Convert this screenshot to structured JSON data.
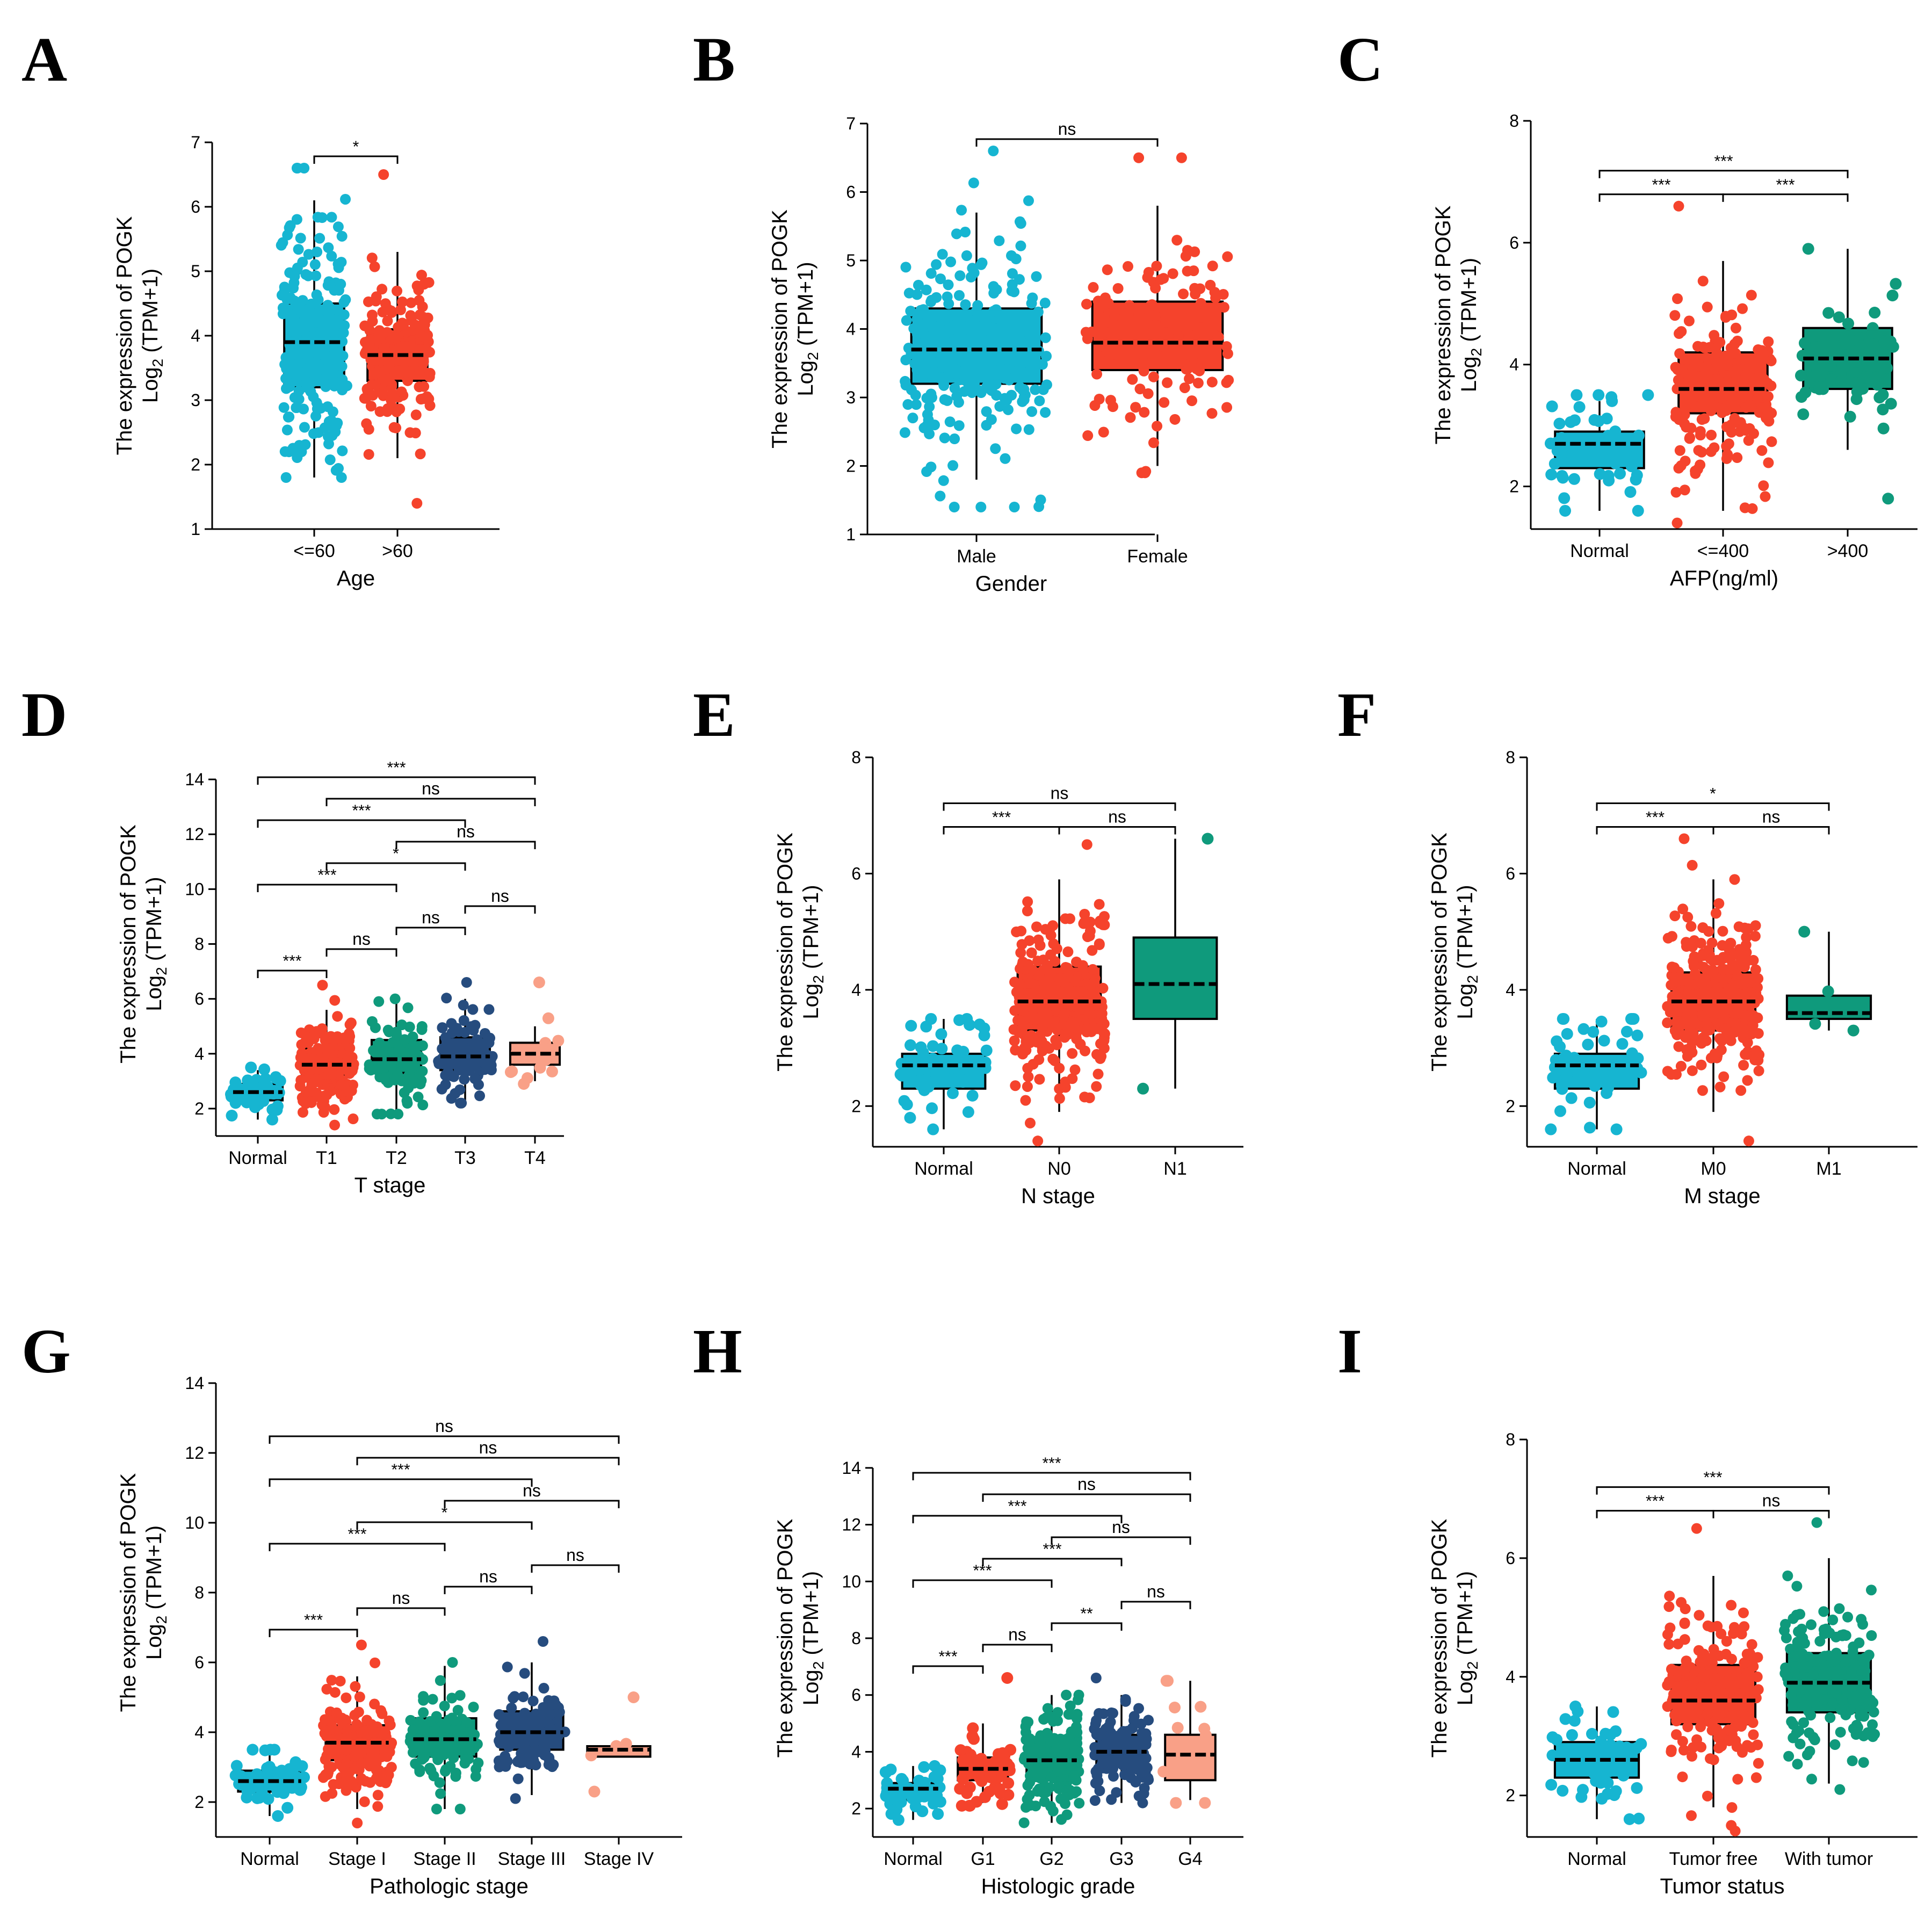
{
  "palette": {
    "cyan": "#16b5d1",
    "red": "#f5432c",
    "teal": "#0f9a7c",
    "navy": "#264c7e",
    "salmon": "#f9a087"
  },
  "ylabel_line1": "The expression of POGK",
  "ylabel_line2_base": "Log",
  "ylabel_line2_sub": "2",
  "ylabel_line2_rest": " (TPM+1)",
  "chart_data": [
    {
      "panel": "A",
      "type": "box-scatter",
      "xlabel": "Age",
      "ylim": [
        1,
        7
      ],
      "yticks": [
        1,
        2,
        3,
        4,
        5,
        6,
        7
      ],
      "groups": [
        {
          "name": "<=60",
          "color": "cyan",
          "n": 180,
          "q1": 3.2,
          "median": 3.9,
          "q3": 4.5,
          "wlo": 1.8,
          "whi": 6.1,
          "pmin": 1.8,
          "pmax": 6.6
        },
        {
          "name": ">60",
          "color": "red",
          "n": 170,
          "q1": 3.3,
          "median": 3.7,
          "q3": 4.1,
          "wlo": 2.1,
          "whi": 5.3,
          "pmin": 1.4,
          "pmax": 6.5
        }
      ],
      "comparisons": [
        {
          "a": 0,
          "b": 1,
          "label": "*"
        }
      ]
    },
    {
      "panel": "B",
      "type": "box-scatter",
      "xlabel": "Gender",
      "ylim": [
        1,
        7
      ],
      "yticks": [
        1,
        2,
        3,
        4,
        5,
        6,
        7
      ],
      "groups": [
        {
          "name": "Male",
          "color": "cyan",
          "n": 240,
          "q1": 3.2,
          "median": 3.7,
          "q3": 4.3,
          "wlo": 1.8,
          "whi": 5.7,
          "pmin": 1.4,
          "pmax": 6.6
        },
        {
          "name": "Female",
          "color": "red",
          "n": 120,
          "q1": 3.4,
          "median": 3.8,
          "q3": 4.4,
          "wlo": 2.0,
          "whi": 5.8,
          "pmin": 1.9,
          "pmax": 6.5
        }
      ],
      "comparisons": [
        {
          "a": 0,
          "b": 1,
          "label": "ns"
        }
      ]
    },
    {
      "panel": "C",
      "type": "box-scatter",
      "xlabel": "AFP(ng/ml)",
      "ylim": [
        1.3,
        8
      ],
      "yticks": [
        2,
        4,
        6,
        8
      ],
      "groups": [
        {
          "name": "Normal",
          "color": "cyan",
          "n": 50,
          "q1": 2.3,
          "median": 2.7,
          "q3": 2.9,
          "wlo": 1.6,
          "whi": 3.4,
          "pmin": 1.6,
          "pmax": 3.5
        },
        {
          "name": "<=400",
          "color": "red",
          "n": 150,
          "q1": 3.2,
          "median": 3.6,
          "q3": 4.2,
          "wlo": 1.6,
          "whi": 5.7,
          "pmin": 1.4,
          "pmax": 6.6
        },
        {
          "name": ">400",
          "color": "teal",
          "n": 55,
          "q1": 3.6,
          "median": 4.1,
          "q3": 4.6,
          "wlo": 2.6,
          "whi": 5.9,
          "pmin": 1.8,
          "pmax": 5.9
        }
      ],
      "comparisons": [
        {
          "a": 0,
          "b": 1,
          "label": "***"
        },
        {
          "a": 0,
          "b": 2,
          "label": "***"
        },
        {
          "a": 1,
          "b": 2,
          "label": "***"
        }
      ]
    },
    {
      "panel": "D",
      "type": "box-scatter",
      "xlabel": "T stage",
      "ylim": [
        1,
        15
      ],
      "yticks": [
        2,
        4,
        6,
        8,
        10,
        12,
        14
      ],
      "groups": [
        {
          "name": "Normal",
          "color": "cyan",
          "n": 50,
          "q1": 2.3,
          "median": 2.6,
          "q3": 2.9,
          "wlo": 1.6,
          "whi": 3.4,
          "pmin": 1.6,
          "pmax": 3.5
        },
        {
          "name": "T1",
          "color": "red",
          "n": 180,
          "q1": 3.2,
          "median": 3.6,
          "q3": 4.2,
          "wlo": 1.8,
          "whi": 5.6,
          "pmin": 1.4,
          "pmax": 6.5
        },
        {
          "name": "T2",
          "color": "teal",
          "n": 95,
          "q1": 3.3,
          "median": 3.8,
          "q3": 4.5,
          "wlo": 1.8,
          "whi": 6.0,
          "pmin": 1.8,
          "pmax": 6.0
        },
        {
          "name": "T3",
          "color": "navy",
          "n": 80,
          "q1": 3.4,
          "median": 3.9,
          "q3": 4.6,
          "wlo": 2.2,
          "whi": 6.0,
          "pmin": 2.2,
          "pmax": 6.6
        },
        {
          "name": "T4",
          "color": "salmon",
          "n": 13,
          "q1": 3.6,
          "median": 4.0,
          "q3": 4.4,
          "wlo": 3.0,
          "whi": 5.0,
          "pmin": 2.9,
          "pmax": 6.6
        }
      ],
      "comparisons": [
        {
          "a": 0,
          "b": 1,
          "label": "***"
        },
        {
          "a": 0,
          "b": 2,
          "label": "***"
        },
        {
          "a": 0,
          "b": 3,
          "label": "***"
        },
        {
          "a": 0,
          "b": 4,
          "label": "***"
        },
        {
          "a": 1,
          "b": 2,
          "label": "ns"
        },
        {
          "a": 1,
          "b": 3,
          "label": "*"
        },
        {
          "a": 1,
          "b": 4,
          "label": "ns"
        },
        {
          "a": 2,
          "b": 3,
          "label": "ns"
        },
        {
          "a": 2,
          "b": 4,
          "label": "ns"
        },
        {
          "a": 3,
          "b": 4,
          "label": "ns"
        }
      ]
    },
    {
      "panel": "E",
      "type": "box-scatter",
      "xlabel": "N stage",
      "ylim": [
        1.3,
        8
      ],
      "yticks": [
        2,
        4,
        6,
        8
      ],
      "groups": [
        {
          "name": "Normal",
          "color": "cyan",
          "n": 50,
          "q1": 2.3,
          "median": 2.7,
          "q3": 2.9,
          "wlo": 1.6,
          "whi": 3.5,
          "pmin": 1.6,
          "pmax": 3.5
        },
        {
          "name": "N0",
          "color": "red",
          "n": 250,
          "q1": 3.3,
          "median": 3.8,
          "q3": 4.4,
          "wlo": 1.9,
          "whi": 5.9,
          "pmin": 1.4,
          "pmax": 6.5
        },
        {
          "name": "N1",
          "color": "teal",
          "n": 4,
          "q1": 3.5,
          "median": 4.1,
          "q3": 4.9,
          "wlo": 2.3,
          "whi": 6.6,
          "pmin": 2.3,
          "pmax": 6.6
        }
      ],
      "comparisons": [
        {
          "a": 0,
          "b": 1,
          "label": "***"
        },
        {
          "a": 0,
          "b": 2,
          "label": "ns"
        },
        {
          "a": 1,
          "b": 2,
          "label": "ns"
        }
      ]
    },
    {
      "panel": "F",
      "type": "box-scatter",
      "xlabel": "M stage",
      "ylim": [
        1.3,
        8
      ],
      "yticks": [
        2,
        4,
        6,
        8
      ],
      "groups": [
        {
          "name": "Normal",
          "color": "cyan",
          "n": 50,
          "q1": 2.3,
          "median": 2.7,
          "q3": 2.9,
          "wlo": 1.6,
          "whi": 3.5,
          "pmin": 1.6,
          "pmax": 3.5
        },
        {
          "name": "M0",
          "color": "red",
          "n": 250,
          "q1": 3.3,
          "median": 3.8,
          "q3": 4.3,
          "wlo": 1.9,
          "whi": 5.9,
          "pmin": 1.4,
          "pmax": 6.6
        },
        {
          "name": "M1",
          "color": "teal",
          "n": 4,
          "q1": 3.5,
          "median": 3.6,
          "q3": 3.9,
          "wlo": 3.3,
          "whi": 5.0,
          "pmin": 3.3,
          "pmax": 5.0
        }
      ],
      "comparisons": [
        {
          "a": 0,
          "b": 1,
          "label": "***"
        },
        {
          "a": 0,
          "b": 2,
          "label": "*"
        },
        {
          "a": 1,
          "b": 2,
          "label": "ns"
        }
      ]
    },
    {
      "panel": "G",
      "type": "box-scatter",
      "xlabel": "Pathologic stage",
      "ylim": [
        1,
        15
      ],
      "yticks": [
        2,
        4,
        6,
        8,
        10,
        12,
        14
      ],
      "groups": [
        {
          "name": "Normal",
          "color": "cyan",
          "n": 50,
          "q1": 2.3,
          "median": 2.6,
          "q3": 2.9,
          "wlo": 1.6,
          "whi": 3.5,
          "pmin": 1.6,
          "pmax": 3.5
        },
        {
          "name": "Stage I",
          "color": "red",
          "n": 170,
          "q1": 3.2,
          "median": 3.7,
          "q3": 4.2,
          "wlo": 1.8,
          "whi": 5.6,
          "pmin": 1.4,
          "pmax": 6.5
        },
        {
          "name": "Stage II",
          "color": "teal",
          "n": 85,
          "q1": 3.3,
          "median": 3.8,
          "q3": 4.4,
          "wlo": 1.8,
          "whi": 5.9,
          "pmin": 1.8,
          "pmax": 6.0
        },
        {
          "name": "Stage III",
          "color": "navy",
          "n": 85,
          "q1": 3.5,
          "median": 4.0,
          "q3": 4.6,
          "wlo": 2.2,
          "whi": 6.0,
          "pmin": 2.1,
          "pmax": 6.6
        },
        {
          "name": "Stage IV",
          "color": "salmon",
          "n": 5,
          "q1": 3.3,
          "median": 3.5,
          "q3": 3.6,
          "wlo": 3.3,
          "whi": 3.6,
          "pmin": 2.3,
          "pmax": 5.0
        }
      ],
      "comparisons": [
        {
          "a": 0,
          "b": 1,
          "label": "***"
        },
        {
          "a": 0,
          "b": 2,
          "label": "***"
        },
        {
          "a": 0,
          "b": 3,
          "label": "***"
        },
        {
          "a": 0,
          "b": 4,
          "label": "ns"
        },
        {
          "a": 1,
          "b": 2,
          "label": "ns"
        },
        {
          "a": 1,
          "b": 3,
          "label": "*"
        },
        {
          "a": 1,
          "b": 4,
          "label": "ns"
        },
        {
          "a": 2,
          "b": 3,
          "label": "ns"
        },
        {
          "a": 2,
          "b": 4,
          "label": "ns"
        },
        {
          "a": 3,
          "b": 4,
          "label": "ns"
        }
      ]
    },
    {
      "panel": "H",
      "type": "box-scatter",
      "xlabel": "Histologic grade",
      "ylim": [
        1,
        15
      ],
      "yticks": [
        2,
        4,
        6,
        8,
        10,
        12,
        14
      ],
      "groups": [
        {
          "name": "Normal",
          "color": "cyan",
          "n": 50,
          "q1": 2.3,
          "median": 2.7,
          "q3": 2.9,
          "wlo": 1.6,
          "whi": 3.5,
          "pmin": 1.6,
          "pmax": 3.5
        },
        {
          "name": "G1",
          "color": "red",
          "n": 55,
          "q1": 3.0,
          "median": 3.4,
          "q3": 3.8,
          "wlo": 2.2,
          "whi": 5.0,
          "pmin": 2.1,
          "pmax": 6.6
        },
        {
          "name": "G2",
          "color": "teal",
          "n": 170,
          "q1": 3.2,
          "median": 3.7,
          "q3": 4.3,
          "wlo": 1.5,
          "whi": 6.0,
          "pmin": 1.5,
          "pmax": 6.0
        },
        {
          "name": "G3",
          "color": "navy",
          "n": 120,
          "q1": 3.5,
          "median": 4.0,
          "q3": 4.6,
          "wlo": 2.2,
          "whi": 6.0,
          "pmin": 2.2,
          "pmax": 6.6
        },
        {
          "name": "G4",
          "color": "salmon",
          "n": 12,
          "q1": 3.0,
          "median": 3.9,
          "q3": 4.6,
          "wlo": 2.3,
          "whi": 6.5,
          "pmin": 2.2,
          "pmax": 6.5
        }
      ],
      "comparisons": [
        {
          "a": 0,
          "b": 1,
          "label": "***"
        },
        {
          "a": 0,
          "b": 2,
          "label": "***"
        },
        {
          "a": 0,
          "b": 3,
          "label": "***"
        },
        {
          "a": 0,
          "b": 4,
          "label": "***"
        },
        {
          "a": 1,
          "b": 2,
          "label": "ns"
        },
        {
          "a": 1,
          "b": 3,
          "label": "***"
        },
        {
          "a": 1,
          "b": 4,
          "label": "ns"
        },
        {
          "a": 2,
          "b": 3,
          "label": "**"
        },
        {
          "a": 2,
          "b": 4,
          "label": "ns"
        },
        {
          "a": 3,
          "b": 4,
          "label": "ns"
        }
      ]
    },
    {
      "panel": "I",
      "type": "box-scatter",
      "xlabel": "Tumor status",
      "ylim": [
        1.3,
        8
      ],
      "yticks": [
        2,
        4,
        6,
        8
      ],
      "groups": [
        {
          "name": "Normal",
          "color": "cyan",
          "n": 50,
          "q1": 2.3,
          "median": 2.6,
          "q3": 2.9,
          "wlo": 1.6,
          "whi": 3.5,
          "pmin": 1.6,
          "pmax": 3.5
        },
        {
          "name": "Tumor free",
          "color": "red",
          "n": 170,
          "q1": 3.2,
          "median": 3.6,
          "q3": 4.2,
          "wlo": 1.8,
          "whi": 5.7,
          "pmin": 1.4,
          "pmax": 6.5
        },
        {
          "name": "With tumor",
          "color": "teal",
          "n": 150,
          "q1": 3.4,
          "median": 3.9,
          "q3": 4.4,
          "wlo": 2.2,
          "whi": 6.0,
          "pmin": 2.1,
          "pmax": 6.6
        }
      ],
      "comparisons": [
        {
          "a": 0,
          "b": 1,
          "label": "***"
        },
        {
          "a": 0,
          "b": 2,
          "label": "***"
        },
        {
          "a": 1,
          "b": 2,
          "label": "ns"
        }
      ]
    }
  ]
}
